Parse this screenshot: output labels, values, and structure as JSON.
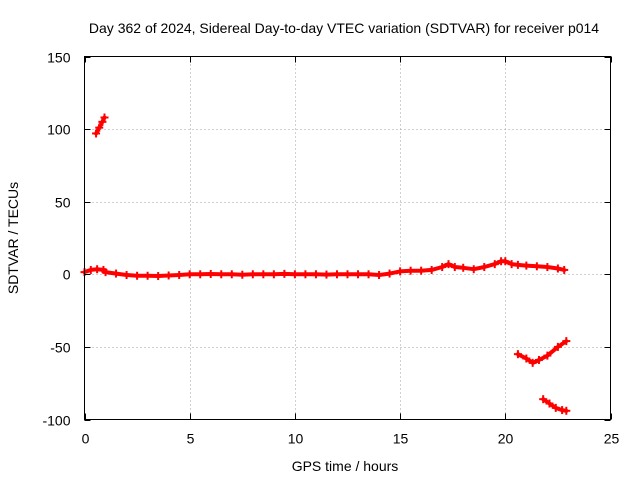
{
  "chart_data": {
    "type": "scatter",
    "title": "Day 362 of 2024, Sidereal Day-to-day VTEC variation (SDTVAR) for receiver p014",
    "xlabel": "GPS time / hours",
    "ylabel": "SDTVAR / TECUs",
    "xlim": [
      0,
      25
    ],
    "ylim": [
      -100,
      150
    ],
    "xticks": [
      0,
      5,
      10,
      15,
      20,
      25
    ],
    "yticks": [
      -100,
      -50,
      0,
      50,
      100,
      150
    ],
    "xtick_labels": [
      "0",
      "5",
      "10",
      "15",
      "20",
      "25"
    ],
    "ytick_labels": [
      "-100",
      "-50",
      "0",
      "50",
      "100",
      "150"
    ],
    "grid": true,
    "legend": "none",
    "series": [
      {
        "name": "main",
        "color": "#ff0000",
        "points": [
          [
            0.0,
            1.5
          ],
          [
            0.3,
            3
          ],
          [
            0.6,
            3.5
          ],
          [
            0.9,
            3
          ],
          [
            1.0,
            1.5
          ],
          [
            1.5,
            0.5
          ],
          [
            2.0,
            -0.5
          ],
          [
            2.5,
            -1
          ],
          [
            3.0,
            -1
          ],
          [
            3.5,
            -1.2
          ],
          [
            4.0,
            -0.8
          ],
          [
            4.5,
            -0.5
          ],
          [
            5.0,
            0
          ],
          [
            5.5,
            0
          ],
          [
            6.0,
            0.2
          ],
          [
            6.5,
            0
          ],
          [
            7.0,
            0
          ],
          [
            7.5,
            -0.3
          ],
          [
            8.0,
            0
          ],
          [
            8.5,
            0
          ],
          [
            9.0,
            0
          ],
          [
            9.5,
            0.3
          ],
          [
            10.0,
            0
          ],
          [
            10.5,
            0
          ],
          [
            11.0,
            0
          ],
          [
            11.5,
            -0.2
          ],
          [
            12.0,
            0
          ],
          [
            12.5,
            0
          ],
          [
            13.0,
            0
          ],
          [
            13.5,
            0
          ],
          [
            14.0,
            -0.5
          ],
          [
            14.5,
            0.5
          ],
          [
            15.0,
            2
          ],
          [
            15.5,
            2.5
          ],
          [
            16.0,
            2.5
          ],
          [
            16.5,
            3
          ],
          [
            17.0,
            5
          ],
          [
            17.3,
            7
          ],
          [
            17.6,
            5
          ],
          [
            18.0,
            4.5
          ],
          [
            18.5,
            3.5
          ],
          [
            19.0,
            5
          ],
          [
            19.5,
            7
          ],
          [
            19.8,
            9
          ],
          [
            20.0,
            9
          ],
          [
            20.3,
            7
          ],
          [
            20.6,
            6.5
          ],
          [
            21.0,
            6
          ],
          [
            21.5,
            5.5
          ],
          [
            22.0,
            5
          ],
          [
            22.5,
            4
          ],
          [
            22.8,
            3
          ]
        ]
      },
      {
        "name": "segment-high",
        "color": "#ff0000",
        "points": [
          [
            0.55,
            97
          ],
          [
            0.7,
            101
          ],
          [
            0.85,
            105
          ],
          [
            0.95,
            108
          ]
        ]
      },
      {
        "name": "segment-low1",
        "color": "#ff0000",
        "points": [
          [
            20.6,
            -55
          ],
          [
            21.0,
            -58
          ],
          [
            21.3,
            -61
          ],
          [
            21.6,
            -59
          ],
          [
            22.0,
            -56
          ],
          [
            22.5,
            -50
          ],
          [
            22.9,
            -46
          ]
        ]
      },
      {
        "name": "segment-low2",
        "color": "#ff0000",
        "points": [
          [
            21.8,
            -86
          ],
          [
            22.1,
            -89
          ],
          [
            22.4,
            -92
          ],
          [
            22.7,
            -93.5
          ],
          [
            22.9,
            -94
          ]
        ]
      }
    ]
  }
}
